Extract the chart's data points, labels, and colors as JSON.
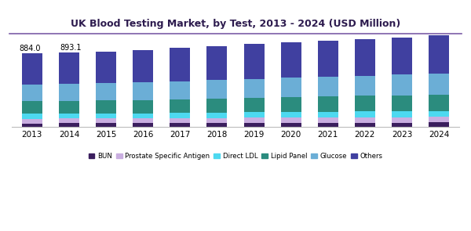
{
  "title": "UK Blood Testing Market, by Test, 2013 - 2024 (USD Million)",
  "years": [
    2013,
    2014,
    2015,
    2016,
    2017,
    2018,
    2019,
    2020,
    2021,
    2022,
    2023,
    2024
  ],
  "annotations": {
    "2013": "884.0",
    "2014": "893.1"
  },
  "segments": {
    "BUN": [
      45,
      46,
      47,
      47,
      48,
      49,
      50,
      51,
      52,
      53,
      54,
      55
    ],
    "Prostate Specific Antigen": [
      55,
      56,
      57,
      58,
      59,
      61,
      62,
      63,
      64,
      65,
      66,
      67
    ],
    "Direct LDL": [
      58,
      59,
      60,
      62,
      64,
      66,
      68,
      69,
      70,
      71,
      72,
      73
    ],
    "Lipid Panel": [
      150,
      152,
      155,
      158,
      163,
      168,
      172,
      176,
      181,
      185,
      190,
      195
    ],
    "Glucose": [
      200,
      202,
      206,
      210,
      215,
      221,
      226,
      231,
      236,
      241,
      245,
      250
    ],
    "Others": [
      376,
      378.1,
      381,
      388,
      398,
      408,
      415,
      421,
      432,
      437,
      445,
      455
    ]
  },
  "colors": {
    "BUN": "#3b1f5e",
    "Prostate Specific Antigen": "#c9aee0",
    "Direct LDL": "#4dd9f0",
    "Lipid Panel": "#2b8c7e",
    "Glucose": "#6baed6",
    "Others": "#4040a0"
  },
  "background_color": "#ffffff",
  "title_color": "#2d1b4e",
  "ylim": [
    0,
    1100
  ],
  "bar_width": 0.55,
  "legend_labels": [
    "BUN",
    "Prostate Specific Antigen",
    "Direct LDL",
    "Lipid Panel",
    "Glucose",
    "Others"
  ],
  "header_line_color": "#7b5ea7",
  "header_bg_color": "#f0eef7"
}
